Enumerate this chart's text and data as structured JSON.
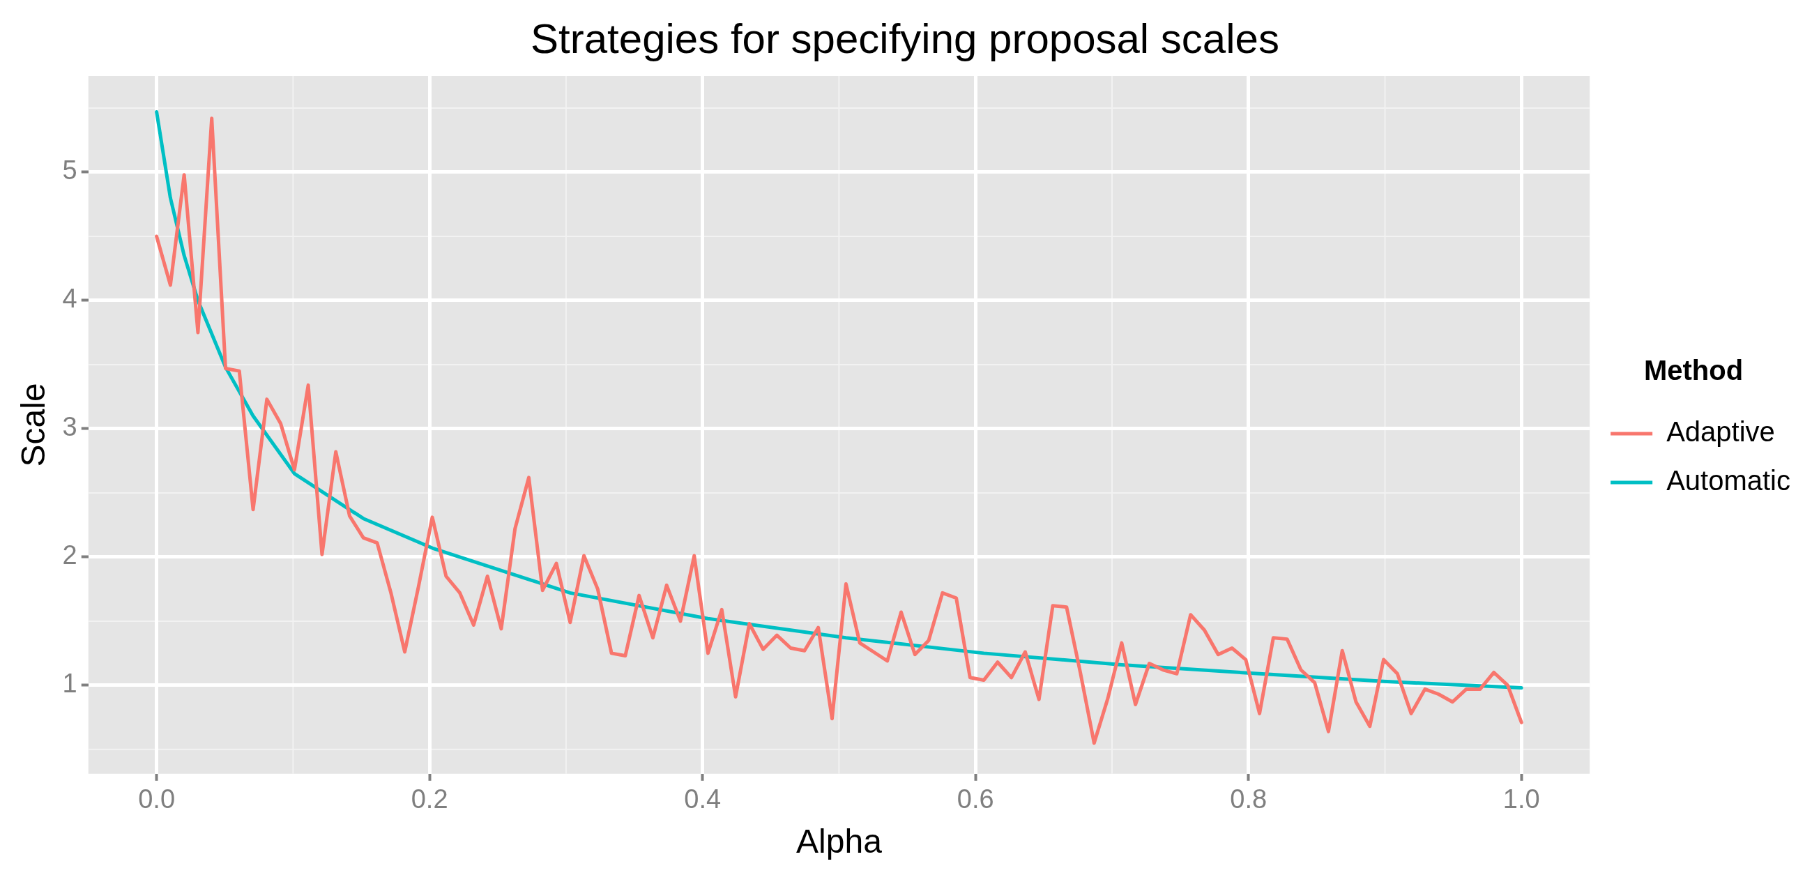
{
  "chart_data": {
    "type": "line",
    "title": "Strategies for specifying proposal scales",
    "xlabel": "Alpha",
    "ylabel": "Scale",
    "legend_title": "Method",
    "xlim": [
      -0.05,
      1.05
    ],
    "ylim": [
      0.31,
      5.75
    ],
    "xticks": [
      {
        "value": 0,
        "label": "0.0"
      },
      {
        "value": 0.2,
        "label": "0.2"
      },
      {
        "value": 0.4,
        "label": "0.4"
      },
      {
        "value": 0.6,
        "label": "0.6"
      },
      {
        "value": 0.8,
        "label": "0.8"
      },
      {
        "value": 1,
        "label": "1.0"
      }
    ],
    "yticks": [
      1,
      2,
      3,
      4,
      5
    ],
    "grid": true,
    "legend": "right",
    "marker": "none",
    "line_style": "solid",
    "series": [
      {
        "name": "Adaptive",
        "color": "#f8766d",
        "x": [
          0,
          0.0101,
          0.0202,
          0.0303,
          0.0404,
          0.0505,
          0.0606,
          0.0707,
          0.0808,
          0.0909,
          0.101,
          0.1111,
          0.1212,
          0.1313,
          0.1414,
          0.1515,
          0.1616,
          0.1717,
          0.1818,
          0.1919,
          0.202,
          0.2121,
          0.2222,
          0.2323,
          0.2424,
          0.2525,
          0.2626,
          0.2727,
          0.2828,
          0.2929,
          0.303,
          0.3131,
          0.3232,
          0.3333,
          0.3434,
          0.3535,
          0.3636,
          0.3737,
          0.3838,
          0.3939,
          0.404,
          0.4141,
          0.4242,
          0.4343,
          0.4444,
          0.4545,
          0.4646,
          0.4747,
          0.4848,
          0.4949,
          0.5051,
          0.5152,
          0.5253,
          0.5354,
          0.5455,
          0.5556,
          0.5657,
          0.5758,
          0.5859,
          0.596,
          0.6061,
          0.6162,
          0.6263,
          0.6364,
          0.6465,
          0.6566,
          0.6667,
          0.6768,
          0.6869,
          0.697,
          0.7071,
          0.7172,
          0.7273,
          0.7374,
          0.7475,
          0.7576,
          0.7677,
          0.7778,
          0.7879,
          0.798,
          0.8081,
          0.8182,
          0.8283,
          0.8384,
          0.8485,
          0.8586,
          0.8687,
          0.8788,
          0.8889,
          0.899,
          0.9091,
          0.9192,
          0.9293,
          0.9394,
          0.9495,
          0.9596,
          0.9697,
          0.9798,
          0.9899,
          1
        ],
        "values": [
          4.5,
          4.12,
          4.98,
          3.75,
          5.42,
          3.47,
          3.45,
          2.37,
          3.23,
          3.04,
          2.68,
          3.34,
          2.02,
          2.82,
          2.32,
          2.15,
          2.11,
          1.72,
          1.26,
          1.77,
          2.31,
          1.85,
          1.72,
          1.47,
          1.85,
          1.44,
          2.22,
          2.62,
          1.74,
          1.95,
          1.49,
          2.01,
          1.75,
          1.25,
          1.23,
          1.7,
          1.37,
          1.78,
          1.5,
          2.01,
          1.25,
          1.59,
          0.91,
          1.48,
          1.28,
          1.39,
          1.29,
          1.27,
          1.45,
          0.74,
          1.79,
          1.33,
          1.26,
          1.19,
          1.57,
          1.24,
          1.35,
          1.72,
          1.68,
          1.06,
          1.04,
          1.18,
          1.06,
          1.26,
          0.89,
          1.62,
          1.61,
          1.1,
          0.55,
          0.9,
          1.33,
          0.85,
          1.17,
          1.12,
          1.09,
          1.55,
          1.43,
          1.24,
          1.29,
          1.2,
          0.78,
          1.37,
          1.36,
          1.12,
          1.02,
          0.64,
          1.27,
          0.87,
          0.68,
          1.2,
          1.09,
          0.78,
          0.97,
          0.93,
          0.87,
          0.97,
          0.97,
          1.1,
          1.0,
          0.71
        ]
      },
      {
        "name": "Automatic",
        "color": "#00bfc4",
        "x": [
          0,
          0.0101,
          0.0202,
          0.0303,
          0.0505,
          0.0707,
          0.101,
          0.1515,
          0.202,
          0.303,
          0.404,
          0.5051,
          0.6061,
          0.7071,
          0.8081,
          0.899,
          1
        ],
        "values": [
          5.47,
          4.8,
          4.35,
          4.0,
          3.48,
          3.1,
          2.65,
          2.3,
          2.07,
          1.72,
          1.52,
          1.37,
          1.25,
          1.16,
          1.09,
          1.03,
          0.98
        ]
      }
    ]
  }
}
